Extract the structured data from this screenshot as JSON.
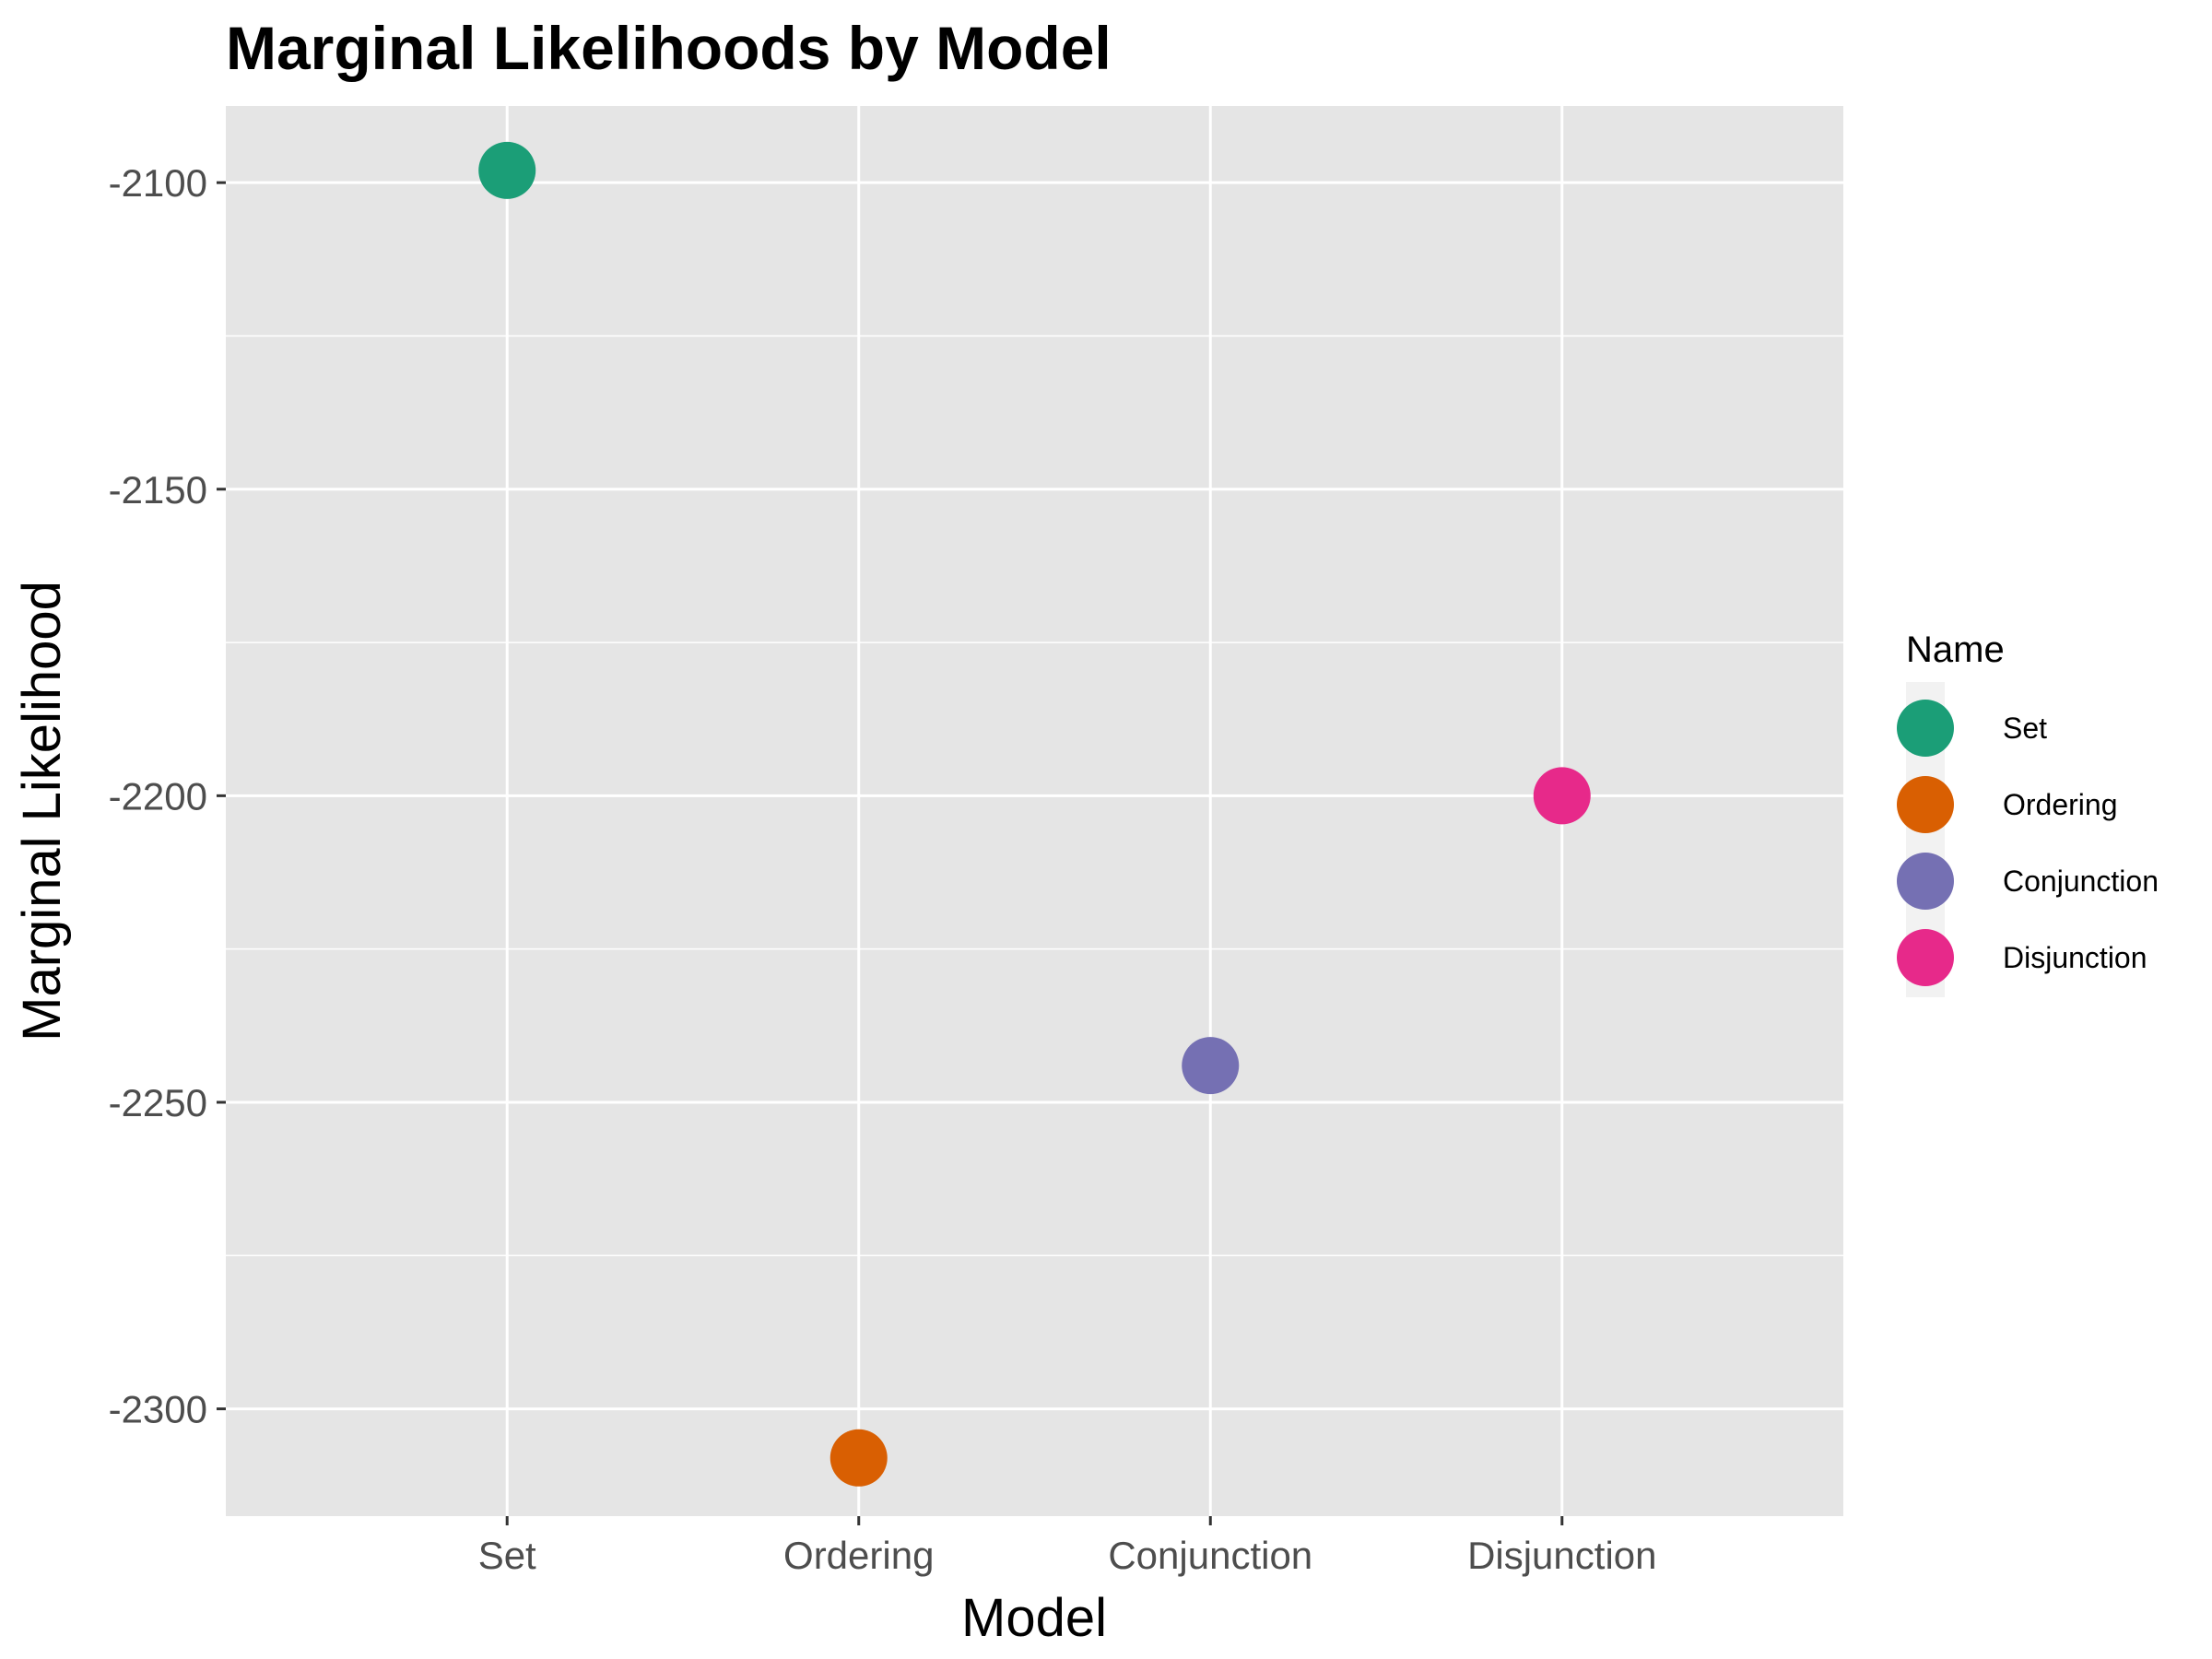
{
  "chart_data": {
    "type": "scatter",
    "title": "Marginal Likelihoods by Model",
    "xlabel": "Model",
    "ylabel": "Marginal Likelihood",
    "categories": [
      "Set",
      "Ordering",
      "Conjunction",
      "Disjunction"
    ],
    "values": [
      -2098,
      -2308,
      -2244,
      -2200
    ],
    "ylim": [
      -2317.5,
      -2087.5
    ],
    "yticks": [
      -2100,
      -2150,
      -2200,
      -2250,
      -2300
    ],
    "ytick_labels": [
      "-2100",
      "-2150",
      "-2200",
      "-2250",
      "-2300"
    ],
    "grid": true,
    "legend": {
      "title": "Name",
      "placement": "right",
      "entries": [
        {
          "label": "Set",
          "color": "#1b9e77"
        },
        {
          "label": "Ordering",
          "color": "#d95f02"
        },
        {
          "label": "Conjunction",
          "color": "#7570b3"
        },
        {
          "label": "Disjunction",
          "color": "#e7298a"
        }
      ]
    },
    "colors": {
      "panel_background": "#e5e5e5",
      "grid": "#ffffff",
      "Set": "#1b9e77",
      "Ordering": "#d95f02",
      "Conjunction": "#7570b3",
      "Disjunction": "#e7298a"
    }
  }
}
